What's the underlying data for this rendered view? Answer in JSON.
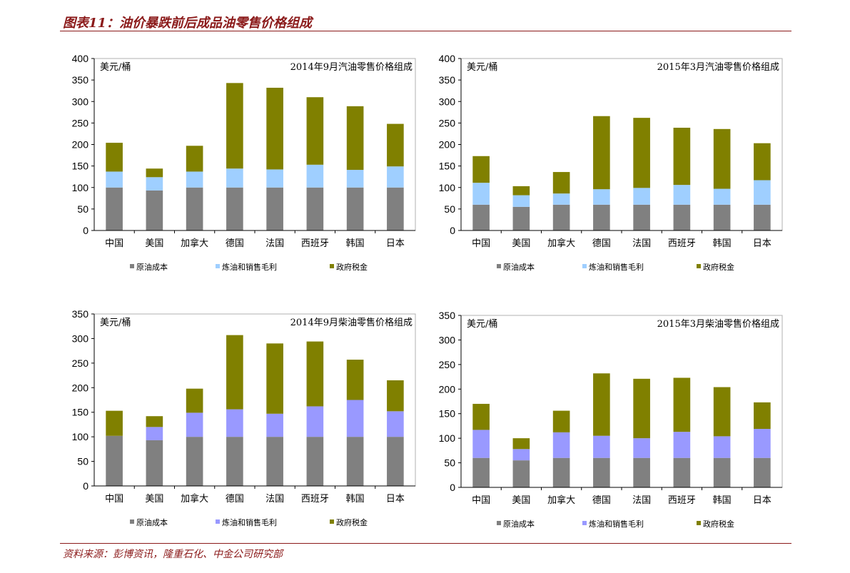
{
  "page": {
    "title": "图表11：油价暴跌前后成品油零售价格组成",
    "source": "资料来源：彭博资讯，隆重石化、中金公司研究部"
  },
  "colors": {
    "title": "#8b1a1a",
    "crude": "#808080",
    "refining_light_blue": "#9fcfff",
    "refining_purple": "#9999ff",
    "tax": "#808000"
  },
  "chart_data": [
    {
      "type": "bar",
      "stacked": true,
      "title": "2014年9月汽油零售价格组成",
      "ylabel": "美元/桶",
      "xlabel": "",
      "ylim": [
        0,
        400
      ],
      "yticks": [
        0,
        50,
        100,
        150,
        200,
        250,
        300,
        350,
        400
      ],
      "grid": false,
      "legend": "bottom",
      "categories": [
        "中国",
        "美国",
        "加拿大",
        "德国",
        "法国",
        "西班牙",
        "韩国",
        "日本"
      ],
      "series": [
        {
          "name": "原油成本",
          "color": "#808080",
          "values": [
            100,
            93,
            100,
            100,
            100,
            100,
            100,
            100
          ]
        },
        {
          "name": "炼油和销售毛利",
          "color": "#9fcfff",
          "values": [
            37,
            31,
            37,
            44,
            42,
            53,
            41,
            49
          ]
        },
        {
          "name": "政府税金",
          "color": "#808000",
          "values": [
            67,
            20,
            60,
            199,
            190,
            157,
            148,
            99
          ]
        }
      ]
    },
    {
      "type": "bar",
      "stacked": true,
      "title": "2015年3月汽油零售价格组成",
      "ylabel": "美元/桶",
      "xlabel": "",
      "ylim": [
        0,
        400
      ],
      "yticks": [
        0,
        50,
        100,
        150,
        200,
        250,
        300,
        350,
        400
      ],
      "grid": false,
      "legend": "bottom",
      "categories": [
        "中国",
        "美国",
        "加拿大",
        "德国",
        "法国",
        "西班牙",
        "韩国",
        "日本"
      ],
      "series": [
        {
          "name": "原油成本",
          "color": "#808080",
          "values": [
            60,
            55,
            60,
            60,
            60,
            60,
            60,
            60
          ]
        },
        {
          "name": "炼油和销售毛利",
          "color": "#9fcfff",
          "values": [
            51,
            27,
            26,
            36,
            39,
            46,
            37,
            57
          ]
        },
        {
          "name": "政府税金",
          "color": "#808000",
          "values": [
            62,
            21,
            50,
            170,
            163,
            133,
            139,
            86
          ]
        }
      ]
    },
    {
      "type": "bar",
      "stacked": true,
      "title": "2014年9月柴油零售价格组成",
      "ylabel": "美元/桶",
      "xlabel": "",
      "ylim": [
        0,
        350
      ],
      "yticks": [
        0,
        50,
        100,
        150,
        200,
        250,
        300,
        350
      ],
      "grid": false,
      "legend": "bottom",
      "categories": [
        "中国",
        "美国",
        "加拿大",
        "德国",
        "法国",
        "西班牙",
        "韩国",
        "日本"
      ],
      "series": [
        {
          "name": "原油成本",
          "color": "#808080",
          "values": [
            102,
            93,
            100,
            100,
            100,
            100,
            100,
            100
          ]
        },
        {
          "name": "炼油和销售毛利",
          "color": "#9999ff",
          "values": [
            0,
            27,
            49,
            56,
            47,
            62,
            75,
            52
          ]
        },
        {
          "name": "政府税金",
          "color": "#808000",
          "values": [
            51,
            22,
            49,
            151,
            143,
            132,
            82,
            63
          ]
        }
      ]
    },
    {
      "type": "bar",
      "stacked": true,
      "title": "2015年3月柴油零售价格组成",
      "ylabel": "美元/桶",
      "xlabel": "",
      "ylim": [
        0,
        350
      ],
      "yticks": [
        0,
        50,
        100,
        150,
        200,
        250,
        300,
        350
      ],
      "grid": false,
      "legend": "bottom",
      "categories": [
        "中国",
        "美国",
        "加拿大",
        "德国",
        "法国",
        "西班牙",
        "韩国",
        "日本"
      ],
      "series": [
        {
          "name": "原油成本",
          "color": "#808080",
          "values": [
            60,
            55,
            60,
            60,
            60,
            60,
            60,
            60
          ]
        },
        {
          "name": "炼油和销售毛利",
          "color": "#9999ff",
          "values": [
            57,
            23,
            52,
            45,
            40,
            53,
            44,
            59
          ]
        },
        {
          "name": "政府税金",
          "color": "#808000",
          "values": [
            53,
            22,
            44,
            127,
            121,
            110,
            100,
            54
          ]
        }
      ]
    }
  ]
}
